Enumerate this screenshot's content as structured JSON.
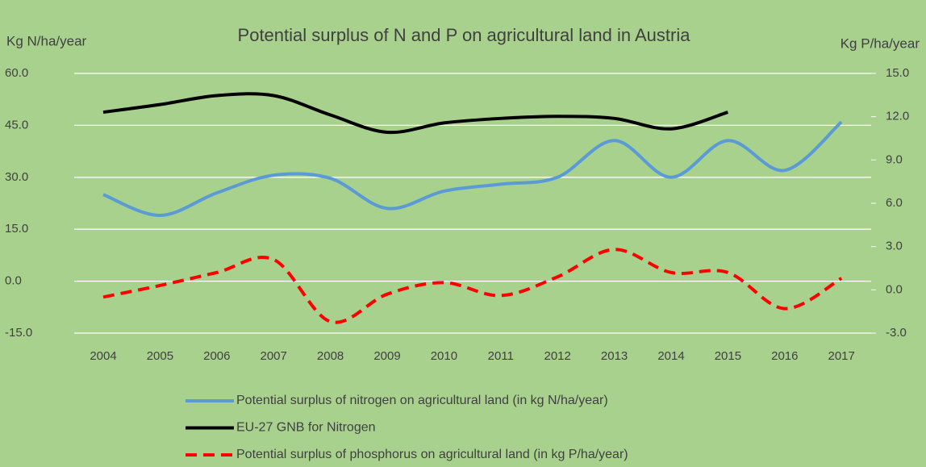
{
  "chart_data": {
    "type": "line",
    "title": "Potential surplus of N and P on agricultural land in Austria",
    "ylabel": "Kg N/ha/year",
    "y2label": "Kg P/ha/year",
    "x": [
      "2004",
      "2005",
      "2006",
      "2007",
      "2008",
      "2009",
      "2010",
      "2011",
      "2012",
      "2013",
      "2014",
      "2015",
      "2016",
      "2017"
    ],
    "ylim": [
      -15,
      60
    ],
    "yticks": [
      {
        "value": -15,
        "label": "-15.0"
      },
      {
        "value": 0,
        "label": "0.0"
      },
      {
        "value": 15,
        "label": "15.0"
      },
      {
        "value": 30,
        "label": "30.0"
      },
      {
        "value": 45,
        "label": "45.0"
      },
      {
        "value": 60,
        "label": "60.0"
      }
    ],
    "y2lim": [
      -3,
      15
    ],
    "y2ticks": [
      {
        "value": -3,
        "label": "-3.0"
      },
      {
        "value": 0,
        "label": "0.0"
      },
      {
        "value": 3,
        "label": "3.0"
      },
      {
        "value": 6,
        "label": "6.0"
      },
      {
        "value": 9,
        "label": "9.0"
      },
      {
        "value": 12,
        "label": "12.0"
      },
      {
        "value": 15,
        "label": "15.0"
      }
    ],
    "grid": true,
    "series": [
      {
        "name": "Potential surplus of nitrogen on agricultural land (in kg N/ha/year)",
        "color": "#5b9bd5",
        "dash": false,
        "values": [
          25,
          19,
          25.5,
          30.6,
          29.7,
          21,
          26,
          28,
          30,
          40.6,
          30,
          40.6,
          32,
          46
        ]
      },
      {
        "name": "EU-27 GNB for Nitrogen",
        "color": "#000000",
        "dash": false,
        "values": [
          48.8,
          51,
          53.6,
          53.6,
          48,
          43,
          45.7,
          47,
          47.6,
          47,
          44,
          48.8,
          null,
          null
        ]
      },
      {
        "name": "Potential surplus of phosphorus on agricultural land (in kg P/ha/year)",
        "color": "#ff0000",
        "dash": true,
        "axis": "y2",
        "values": [
          -0.5,
          0.3,
          1.2,
          2.1,
          -2.2,
          -0.3,
          0.5,
          -0.4,
          0.9,
          2.8,
          1.2,
          1.2,
          -1.3,
          0.8
        ]
      }
    ]
  }
}
